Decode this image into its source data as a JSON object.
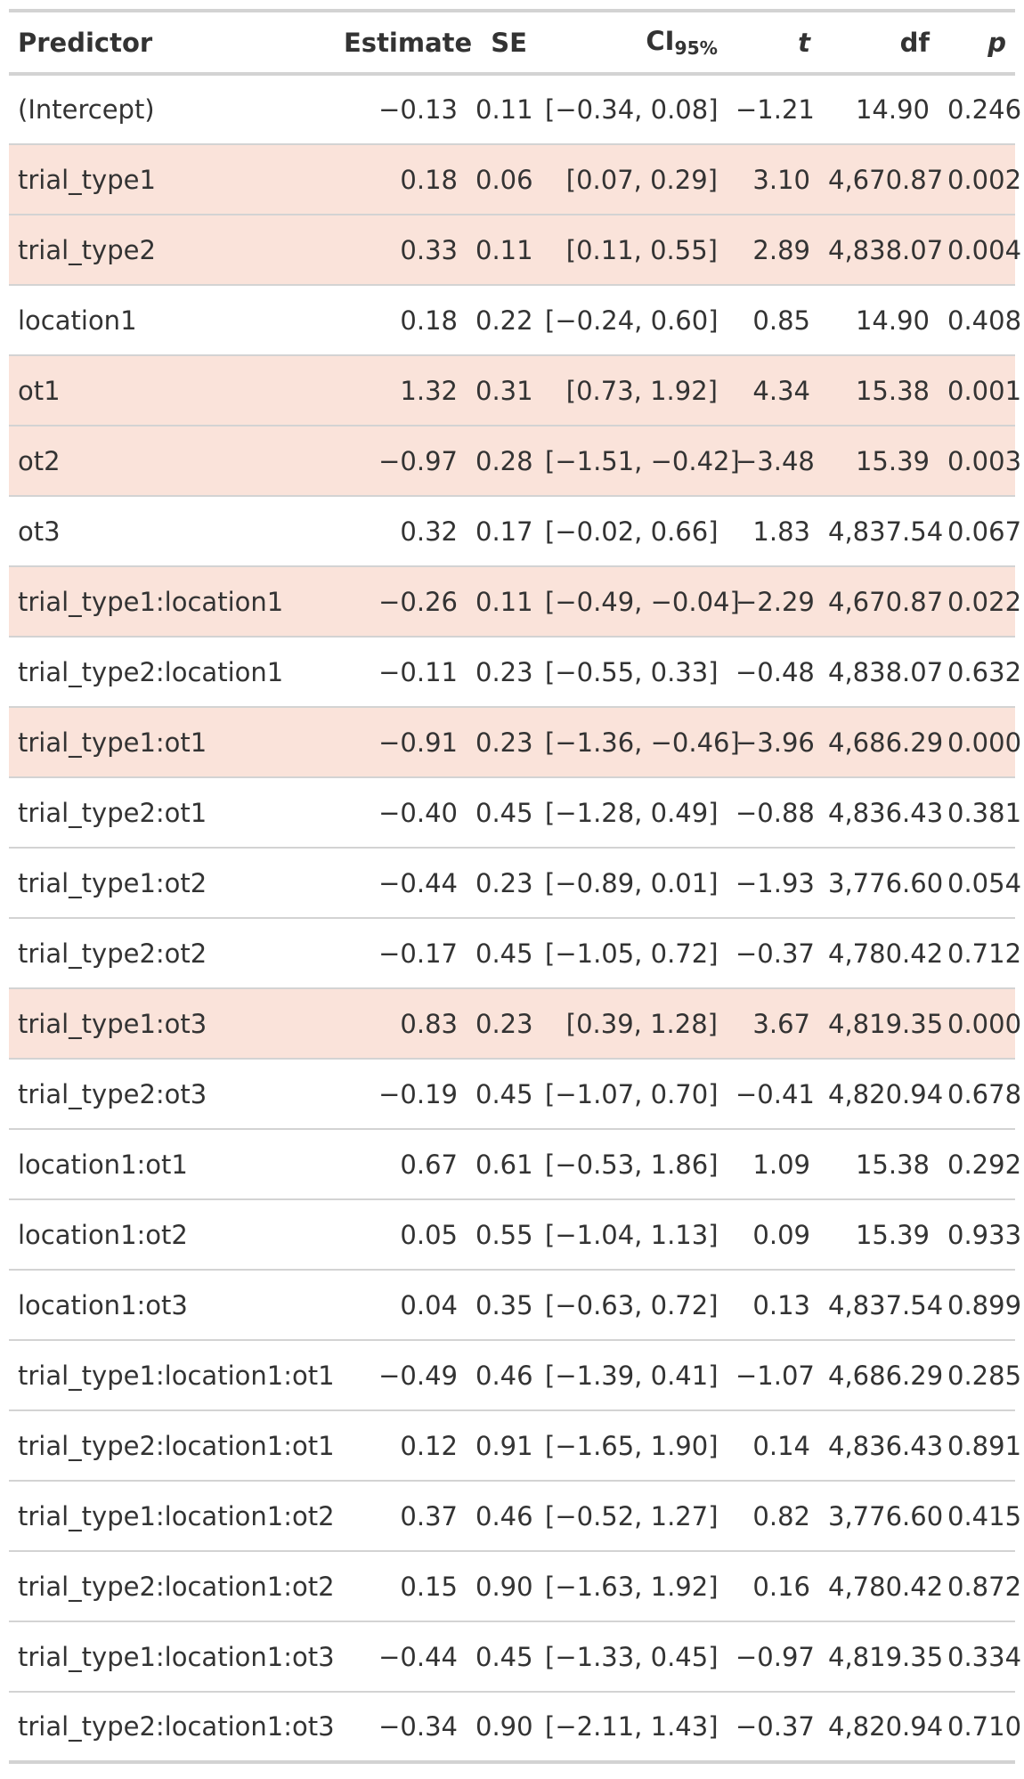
{
  "header": {
    "predictor": "Predictor",
    "estimate": "Estimate",
    "se": "SE",
    "ci": "CI",
    "ci_sub": "95%",
    "t": "t",
    "df": "df",
    "p": "p"
  },
  "colors": {
    "highlight_row": "#fae3da",
    "border": "#d3d3d3",
    "text": "#333333"
  },
  "rows": [
    {
      "predictor": "(Intercept)",
      "estimate": "−0.13",
      "se": "0.11",
      "ci": "[−0.34, 0.08]",
      "t": "−1.21",
      "df": "14.90",
      "p": "0.246",
      "highlight": false
    },
    {
      "predictor": "trial_type1",
      "estimate": "0.18",
      "se": "0.06",
      "ci": "[0.07, 0.29]",
      "t": "3.10",
      "df": "4,670.87",
      "p": "0.002",
      "highlight": true
    },
    {
      "predictor": "trial_type2",
      "estimate": "0.33",
      "se": "0.11",
      "ci": "[0.11, 0.55]",
      "t": "2.89",
      "df": "4,838.07",
      "p": "0.004",
      "highlight": true
    },
    {
      "predictor": "location1",
      "estimate": "0.18",
      "se": "0.22",
      "ci": "[−0.24, 0.60]",
      "t": "0.85",
      "df": "14.90",
      "p": "0.408",
      "highlight": false
    },
    {
      "predictor": "ot1",
      "estimate": "1.32",
      "se": "0.31",
      "ci": "[0.73, 1.92]",
      "t": "4.34",
      "df": "15.38",
      "p": "0.001",
      "highlight": true
    },
    {
      "predictor": "ot2",
      "estimate": "−0.97",
      "se": "0.28",
      "ci": "[−1.51, −0.42]",
      "t": "−3.48",
      "df": "15.39",
      "p": "0.003",
      "highlight": true
    },
    {
      "predictor": "ot3",
      "estimate": "0.32",
      "se": "0.17",
      "ci": "[−0.02, 0.66]",
      "t": "1.83",
      "df": "4,837.54",
      "p": "0.067",
      "highlight": false
    },
    {
      "predictor": "trial_type1:location1",
      "estimate": "−0.26",
      "se": "0.11",
      "ci": "[−0.49, −0.04]",
      "t": "−2.29",
      "df": "4,670.87",
      "p": "0.022",
      "highlight": true
    },
    {
      "predictor": "trial_type2:location1",
      "estimate": "−0.11",
      "se": "0.23",
      "ci": "[−0.55, 0.33]",
      "t": "−0.48",
      "df": "4,838.07",
      "p": "0.632",
      "highlight": false
    },
    {
      "predictor": "trial_type1:ot1",
      "estimate": "−0.91",
      "se": "0.23",
      "ci": "[−1.36, −0.46]",
      "t": "−3.96",
      "df": "4,686.29",
      "p": "0.000",
      "highlight": true
    },
    {
      "predictor": "trial_type2:ot1",
      "estimate": "−0.40",
      "se": "0.45",
      "ci": "[−1.28, 0.49]",
      "t": "−0.88",
      "df": "4,836.43",
      "p": "0.381",
      "highlight": false
    },
    {
      "predictor": "trial_type1:ot2",
      "estimate": "−0.44",
      "se": "0.23",
      "ci": "[−0.89, 0.01]",
      "t": "−1.93",
      "df": "3,776.60",
      "p": "0.054",
      "highlight": false
    },
    {
      "predictor": "trial_type2:ot2",
      "estimate": "−0.17",
      "se": "0.45",
      "ci": "[−1.05, 0.72]",
      "t": "−0.37",
      "df": "4,780.42",
      "p": "0.712",
      "highlight": false
    },
    {
      "predictor": "trial_type1:ot3",
      "estimate": "0.83",
      "se": "0.23",
      "ci": "[0.39, 1.28]",
      "t": "3.67",
      "df": "4,819.35",
      "p": "0.000",
      "highlight": true
    },
    {
      "predictor": "trial_type2:ot3",
      "estimate": "−0.19",
      "se": "0.45",
      "ci": "[−1.07, 0.70]",
      "t": "−0.41",
      "df": "4,820.94",
      "p": "0.678",
      "highlight": false
    },
    {
      "predictor": "location1:ot1",
      "estimate": "0.67",
      "se": "0.61",
      "ci": "[−0.53, 1.86]",
      "t": "1.09",
      "df": "15.38",
      "p": "0.292",
      "highlight": false
    },
    {
      "predictor": "location1:ot2",
      "estimate": "0.05",
      "se": "0.55",
      "ci": "[−1.04, 1.13]",
      "t": "0.09",
      "df": "15.39",
      "p": "0.933",
      "highlight": false
    },
    {
      "predictor": "location1:ot3",
      "estimate": "0.04",
      "se": "0.35",
      "ci": "[−0.63, 0.72]",
      "t": "0.13",
      "df": "4,837.54",
      "p": "0.899",
      "highlight": false
    },
    {
      "predictor": "trial_type1:location1:ot1",
      "estimate": "−0.49",
      "se": "0.46",
      "ci": "[−1.39, 0.41]",
      "t": "−1.07",
      "df": "4,686.29",
      "p": "0.285",
      "highlight": false
    },
    {
      "predictor": "trial_type2:location1:ot1",
      "estimate": "0.12",
      "se": "0.91",
      "ci": "[−1.65, 1.90]",
      "t": "0.14",
      "df": "4,836.43",
      "p": "0.891",
      "highlight": false
    },
    {
      "predictor": "trial_type1:location1:ot2",
      "estimate": "0.37",
      "se": "0.46",
      "ci": "[−0.52, 1.27]",
      "t": "0.82",
      "df": "3,776.60",
      "p": "0.415",
      "highlight": false
    },
    {
      "predictor": "trial_type2:location1:ot2",
      "estimate": "0.15",
      "se": "0.90",
      "ci": "[−1.63, 1.92]",
      "t": "0.16",
      "df": "4,780.42",
      "p": "0.872",
      "highlight": false
    },
    {
      "predictor": "trial_type1:location1:ot3",
      "estimate": "−0.44",
      "se": "0.45",
      "ci": "[−1.33, 0.45]",
      "t": "−0.97",
      "df": "4,819.35",
      "p": "0.334",
      "highlight": false
    },
    {
      "predictor": "trial_type2:location1:ot3",
      "estimate": "−0.34",
      "se": "0.90",
      "ci": "[−2.11, 1.43]",
      "t": "−0.37",
      "df": "4,820.94",
      "p": "0.710",
      "highlight": false
    }
  ]
}
